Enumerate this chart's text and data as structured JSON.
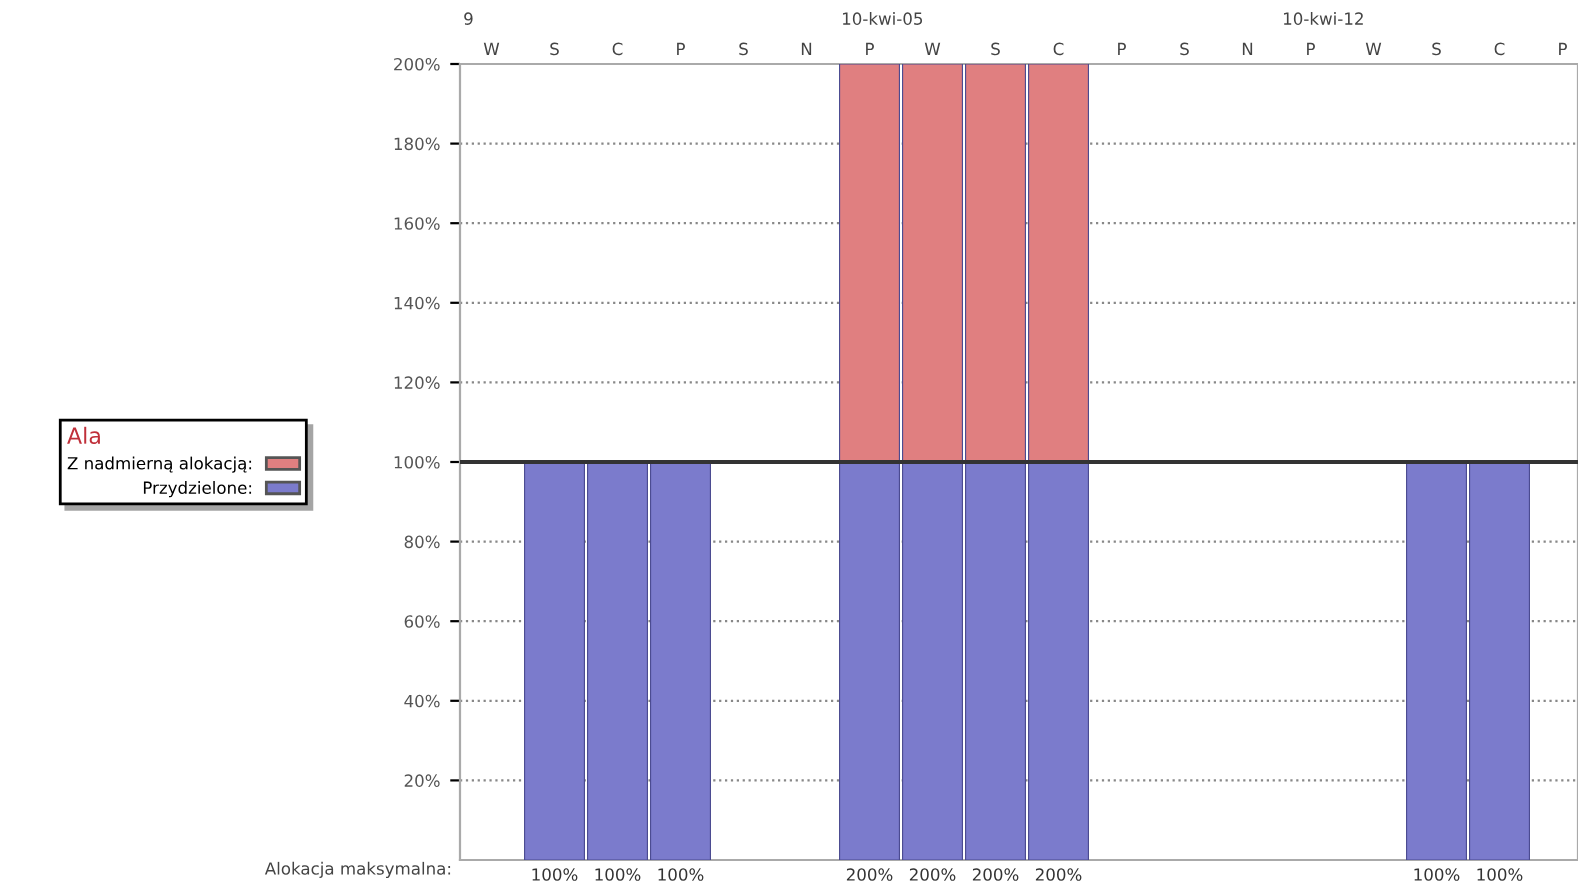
{
  "chart_data": {
    "type": "bar",
    "stacked": true,
    "legend_title": "Ala",
    "legend": "left",
    "categories": [
      "W",
      "S",
      "C",
      "P",
      "S",
      "N",
      "P",
      "W",
      "S",
      "C",
      "P",
      "S",
      "N",
      "P",
      "W",
      "S",
      "C",
      "P"
    ],
    "series": [
      {
        "name": "Przydzielone:",
        "color": "#7b7bcc",
        "values": [
          0,
          100,
          100,
          100,
          0,
          0,
          100,
          100,
          100,
          100,
          0,
          0,
          0,
          0,
          0,
          100,
          100,
          0
        ]
      },
      {
        "name": "Z nadmierną alokacją:",
        "color": "#e07f80",
        "values": [
          0,
          0,
          0,
          0,
          0,
          0,
          100,
          100,
          100,
          100,
          0,
          0,
          0,
          0,
          0,
          0,
          0,
          0
        ]
      }
    ],
    "totals": [
      null,
      "100%",
      "100%",
      "100%",
      null,
      null,
      "200%",
      "200%",
      "200%",
      "200%",
      null,
      null,
      null,
      null,
      null,
      "100%",
      "100%",
      null
    ],
    "ylim": [
      0,
      200
    ],
    "yticks": [
      {
        "value": 20,
        "label": "20%"
      },
      {
        "value": 40,
        "label": "40%"
      },
      {
        "value": 60,
        "label": "60%"
      },
      {
        "value": 80,
        "label": "80%"
      },
      {
        "value": 100,
        "label": "100%"
      },
      {
        "value": 120,
        "label": "120%"
      },
      {
        "value": 140,
        "label": "140%"
      },
      {
        "value": 160,
        "label": "160%"
      },
      {
        "value": 180,
        "label": "180%"
      },
      {
        "value": 200,
        "label": "200%"
      }
    ],
    "grid": "y",
    "ref_lines": [
      {
        "axis": "y",
        "value": 100,
        "color": "#333333"
      }
    ],
    "annotations": [
      "9",
      "10-kwi-05",
      "10-kwi-12",
      "Alokacja maksymalna:"
    ]
  }
}
